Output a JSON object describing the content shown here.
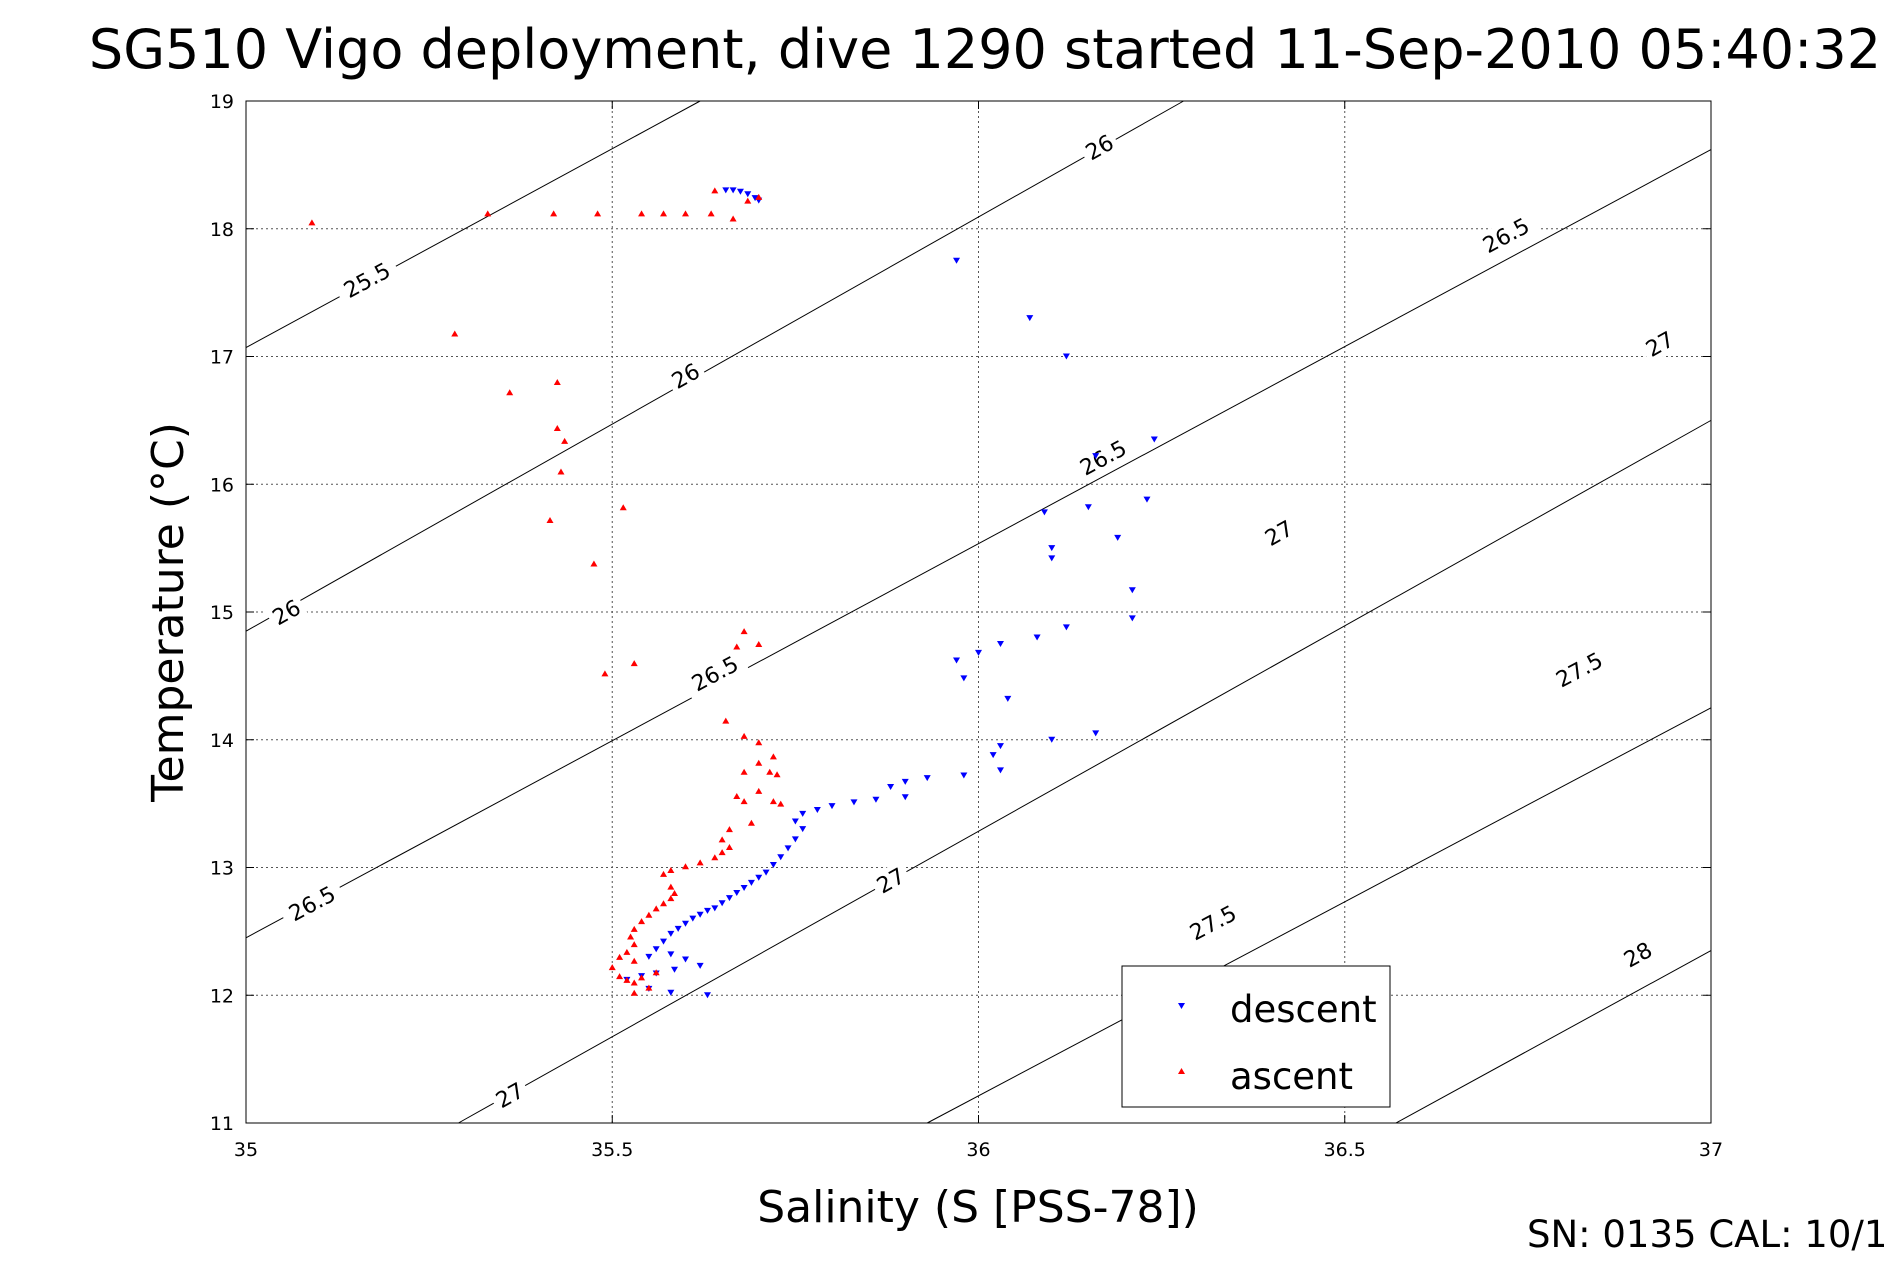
{
  "chart_data": {
    "type": "scatter",
    "title": "SG510 Vigo deployment, dive 1290 started 11-Sep-2010 05:40:32",
    "xlabel": "Salinity (S [PSS-78])",
    "ylabel": "Temperature (°C)",
    "xlim": [
      35,
      37
    ],
    "ylim": [
      11,
      19
    ],
    "xticks": [
      "35",
      "35.5",
      "36",
      "36.5",
      "37"
    ],
    "yticks": [
      "11",
      "12",
      "13",
      "14",
      "15",
      "16",
      "17",
      "18",
      "19"
    ],
    "grid": true,
    "legend_position": "bottom-right",
    "footer": "SN: 0135  CAL: 10/1",
    "contours": [
      {
        "label": "25.5",
        "points": [
          [
            35,
            17.07
          ],
          [
            35.62,
            19.0
          ]
        ],
        "label_at": [
          [
            35.165,
            17.6
          ]
        ]
      },
      {
        "label": "26",
        "points": [
          [
            35,
            14.85
          ],
          [
            36.28,
            19.0
          ]
        ],
        "label_at": [
          [
            35.055,
            15.0
          ],
          [
            35.6,
            16.85
          ],
          [
            36.165,
            18.64
          ]
        ]
      },
      {
        "label": "26.5",
        "points": [
          [
            35,
            12.45
          ],
          [
            37.0,
            18.62
          ]
        ],
        "label_at": [
          [
            35.09,
            12.72
          ],
          [
            35.64,
            14.52
          ],
          [
            36.17,
            16.21
          ],
          [
            36.72,
            17.95
          ]
        ]
      },
      {
        "label": "27",
        "points": [
          [
            35.29,
            11.0
          ],
          [
            37.0,
            16.5
          ]
        ],
        "label_at": [
          [
            35.36,
            11.22
          ],
          [
            35.88,
            12.9
          ],
          [
            36.41,
            15.62
          ],
          [
            36.93,
            17.1
          ]
        ]
      },
      {
        "label": "27.5",
        "points": [
          [
            35.93,
            11.0
          ],
          [
            37.0,
            14.25
          ]
        ],
        "label_at": [
          [
            36.32,
            12.57
          ],
          [
            36.82,
            14.55
          ]
        ]
      },
      {
        "label": "28",
        "points": [
          [
            36.57,
            11.0
          ],
          [
            37.0,
            12.35
          ]
        ],
        "label_at": [
          [
            36.9,
            12.32
          ]
        ]
      }
    ],
    "series": [
      {
        "name": "descent",
        "color": "#0000ff",
        "marker": "triangle-down",
        "points": [
          [
            35.655,
            18.3
          ],
          [
            35.665,
            18.3
          ],
          [
            35.675,
            18.29
          ],
          [
            35.685,
            18.27
          ],
          [
            35.695,
            18.24
          ],
          [
            35.7,
            18.22
          ],
          [
            35.97,
            17.75
          ],
          [
            36.07,
            17.3
          ],
          [
            36.12,
            17.0
          ],
          [
            36.24,
            16.35
          ],
          [
            36.16,
            16.22
          ],
          [
            36.23,
            15.88
          ],
          [
            36.15,
            15.82
          ],
          [
            36.09,
            15.78
          ],
          [
            36.19,
            15.58
          ],
          [
            36.1,
            15.5
          ],
          [
            36.1,
            15.42
          ],
          [
            36.21,
            15.17
          ],
          [
            36.21,
            14.95
          ],
          [
            36.12,
            14.88
          ],
          [
            36.08,
            14.8
          ],
          [
            36.03,
            14.75
          ],
          [
            36.0,
            14.68
          ],
          [
            35.97,
            14.62
          ],
          [
            35.98,
            14.48
          ],
          [
            36.04,
            14.32
          ],
          [
            36.16,
            14.05
          ],
          [
            36.1,
            14.0
          ],
          [
            36.03,
            13.95
          ],
          [
            36.02,
            13.88
          ],
          [
            36.03,
            13.76
          ],
          [
            35.98,
            13.72
          ],
          [
            35.93,
            13.7
          ],
          [
            35.9,
            13.67
          ],
          [
            35.88,
            13.63
          ],
          [
            35.9,
            13.55
          ],
          [
            35.86,
            13.53
          ],
          [
            35.83,
            13.51
          ],
          [
            35.8,
            13.48
          ],
          [
            35.78,
            13.45
          ],
          [
            35.76,
            13.42
          ],
          [
            35.75,
            13.36
          ],
          [
            35.76,
            13.3
          ],
          [
            35.75,
            13.22
          ],
          [
            35.74,
            13.15
          ],
          [
            35.73,
            13.08
          ],
          [
            35.72,
            13.02
          ],
          [
            35.71,
            12.96
          ],
          [
            35.7,
            12.92
          ],
          [
            35.69,
            12.88
          ],
          [
            35.68,
            12.84
          ],
          [
            35.67,
            12.8
          ],
          [
            35.66,
            12.76
          ],
          [
            35.65,
            12.72
          ],
          [
            35.64,
            12.68
          ],
          [
            35.63,
            12.66
          ],
          [
            35.62,
            12.63
          ],
          [
            35.61,
            12.6
          ],
          [
            35.6,
            12.56
          ],
          [
            35.59,
            12.52
          ],
          [
            35.58,
            12.48
          ],
          [
            35.57,
            12.42
          ],
          [
            35.56,
            12.36
          ],
          [
            35.55,
            12.3
          ],
          [
            35.58,
            12.32
          ],
          [
            35.6,
            12.28
          ],
          [
            35.62,
            12.23
          ],
          [
            35.585,
            12.2
          ],
          [
            35.56,
            12.17
          ],
          [
            35.54,
            12.15
          ],
          [
            35.52,
            12.12
          ],
          [
            35.55,
            12.05
          ],
          [
            35.58,
            12.02
          ],
          [
            35.63,
            12.0
          ]
        ]
      },
      {
        "name": "ascent",
        "color": "#ff0000",
        "marker": "triangle-up",
        "points": [
          [
            35.09,
            18.05
          ],
          [
            35.33,
            18.12
          ],
          [
            35.42,
            18.12
          ],
          [
            35.48,
            18.12
          ],
          [
            35.54,
            18.12
          ],
          [
            35.57,
            18.12
          ],
          [
            35.6,
            18.12
          ],
          [
            35.635,
            18.12
          ],
          [
            35.665,
            18.08
          ],
          [
            35.64,
            18.3
          ],
          [
            35.685,
            18.22
          ],
          [
            35.7,
            18.25
          ],
          [
            35.285,
            17.18
          ],
          [
            35.36,
            16.72
          ],
          [
            35.425,
            16.8
          ],
          [
            35.425,
            16.44
          ],
          [
            35.435,
            16.34
          ],
          [
            35.43,
            16.1
          ],
          [
            35.415,
            15.72
          ],
          [
            35.515,
            15.82
          ],
          [
            35.475,
            15.38
          ],
          [
            35.68,
            14.85
          ],
          [
            35.67,
            14.73
          ],
          [
            35.7,
            14.75
          ],
          [
            35.53,
            14.6
          ],
          [
            35.49,
            14.52
          ],
          [
            35.655,
            14.15
          ],
          [
            35.68,
            14.03
          ],
          [
            35.7,
            13.98
          ],
          [
            35.72,
            13.87
          ],
          [
            35.7,
            13.82
          ],
          [
            35.68,
            13.75
          ],
          [
            35.715,
            13.75
          ],
          [
            35.725,
            13.73
          ],
          [
            35.7,
            13.6
          ],
          [
            35.67,
            13.56
          ],
          [
            35.68,
            13.52
          ],
          [
            35.72,
            13.52
          ],
          [
            35.73,
            13.5
          ],
          [
            35.69,
            13.35
          ],
          [
            35.66,
            13.3
          ],
          [
            35.65,
            13.22
          ],
          [
            35.66,
            13.16
          ],
          [
            35.65,
            13.12
          ],
          [
            35.64,
            13.08
          ],
          [
            35.62,
            13.04
          ],
          [
            35.6,
            13.01
          ],
          [
            35.58,
            12.98
          ],
          [
            35.57,
            12.95
          ],
          [
            35.58,
            12.85
          ],
          [
            35.585,
            12.8
          ],
          [
            35.58,
            12.76
          ],
          [
            35.57,
            12.72
          ],
          [
            35.56,
            12.68
          ],
          [
            35.55,
            12.63
          ],
          [
            35.54,
            12.58
          ],
          [
            35.53,
            12.52
          ],
          [
            35.525,
            12.46
          ],
          [
            35.53,
            12.4
          ],
          [
            35.52,
            12.34
          ],
          [
            35.51,
            12.3
          ],
          [
            35.53,
            12.27
          ],
          [
            35.5,
            12.22
          ],
          [
            35.51,
            12.15
          ],
          [
            35.52,
            12.12
          ],
          [
            35.53,
            12.1
          ],
          [
            35.54,
            12.14
          ],
          [
            35.56,
            12.18
          ],
          [
            35.55,
            12.06
          ],
          [
            35.53,
            12.02
          ]
        ]
      }
    ]
  }
}
